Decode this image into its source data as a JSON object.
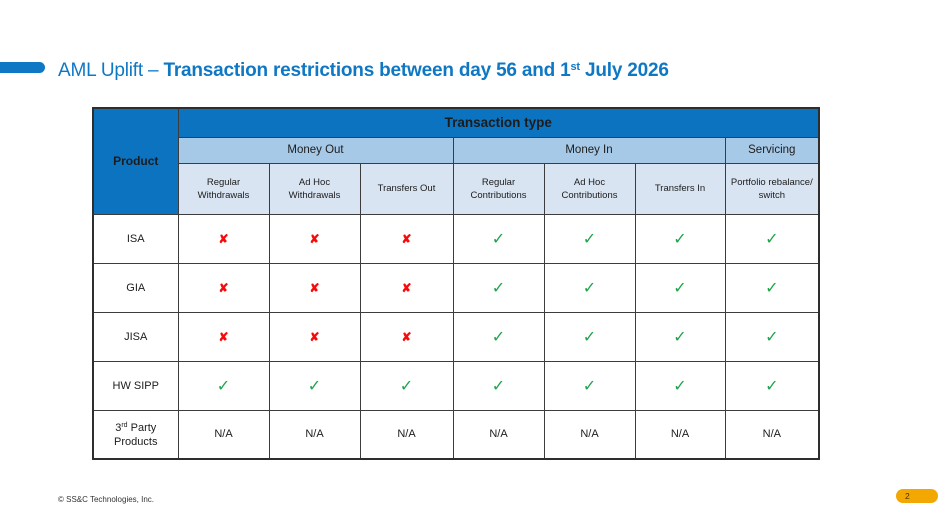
{
  "title": {
    "prefix": "AML Uplift – ",
    "bold_pre": "Transaction restrictions between day 56 and 1",
    "sup": "st",
    "bold_post": " July 2026"
  },
  "table": {
    "corner_label": "Product",
    "top_header": "Transaction type",
    "groups": [
      {
        "label": "Money Out",
        "span": 3
      },
      {
        "label": "Money In",
        "span": 3
      },
      {
        "label": "Servicing",
        "span": 1
      }
    ],
    "columns": [
      "Regular Withdrawals",
      "Ad Hoc Withdrawals",
      "Transfers Out",
      "Regular Contributions",
      "Ad Hoc Contributions",
      "Transfers In",
      "Portfolio rebalance/ switch"
    ],
    "rows": [
      {
        "product": "ISA",
        "cells": [
          "no",
          "no",
          "no",
          "yes",
          "yes",
          "yes",
          "yes"
        ]
      },
      {
        "product": "GIA",
        "cells": [
          "no",
          "no",
          "no",
          "yes",
          "yes",
          "yes",
          "yes"
        ]
      },
      {
        "product": "JISA",
        "cells": [
          "no",
          "no",
          "no",
          "yes",
          "yes",
          "yes",
          "yes"
        ]
      },
      {
        "product": "HW SIPP",
        "cells": [
          "yes",
          "yes",
          "yes",
          "yes",
          "yes",
          "yes",
          "yes"
        ]
      },
      {
        "product": {
          "pre": "3",
          "sup": "rd",
          "post": " Party Products"
        },
        "cells": [
          "N/A",
          "N/A",
          "N/A",
          "N/A",
          "N/A",
          "N/A",
          "N/A"
        ]
      }
    ],
    "symbols": {
      "yes": "✓",
      "no": "✘"
    }
  },
  "footer": {
    "copyright": "© SS&C Technologies, Inc.",
    "page_number": "2"
  },
  "colors": {
    "accent_blue": "#0f78c4",
    "header_blue": "#0b73c0",
    "group_blue": "#a7c9e8",
    "colname_blue": "#d8e4f2",
    "check_green": "#1fa34c",
    "cross_red": "#f60b0b",
    "pill_orange": "#f2a702"
  }
}
